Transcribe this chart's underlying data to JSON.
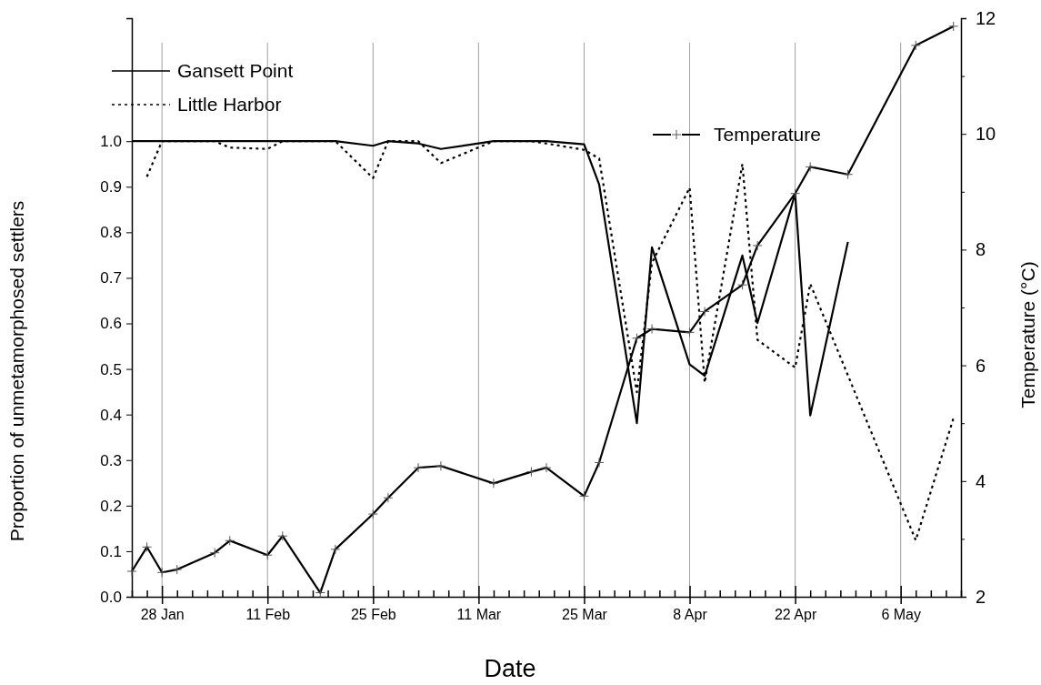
{
  "chart_data": {
    "type": "line",
    "xlabel": "Date",
    "ylabel": "Proportion of unmetamorphosed settlers",
    "y2label": "Temperature (°C)",
    "xlim": [
      "--01-24",
      "--05-14"
    ],
    "xticks": [
      {
        "value": "--01-24",
        "label": null
      },
      {
        "value": "--01-26",
        "label": null
      },
      {
        "value": "--01-28",
        "label": "28 Jan"
      },
      {
        "value": "--01-30",
        "label": null
      },
      {
        "value": "--02-01",
        "label": null
      },
      {
        "value": "--02-03",
        "label": null
      },
      {
        "value": "--02-05",
        "label": null
      },
      {
        "value": "--02-07",
        "label": null
      },
      {
        "value": "--02-09",
        "label": null
      },
      {
        "value": "--02-11",
        "label": "11 Feb"
      },
      {
        "value": "--02-13",
        "label": null
      },
      {
        "value": "--02-15",
        "label": null
      },
      {
        "value": "--02-17",
        "label": null
      },
      {
        "value": "--02-19",
        "label": null
      },
      {
        "value": "--02-21",
        "label": null
      },
      {
        "value": "--02-23",
        "label": null
      },
      {
        "value": "--02-25",
        "label": "25 Feb"
      },
      {
        "value": "--02-27",
        "label": null
      },
      {
        "value": "--03-01",
        "label": null
      },
      {
        "value": "--03-03",
        "label": null
      },
      {
        "value": "--03-05",
        "label": null
      },
      {
        "value": "--03-07",
        "label": null
      },
      {
        "value": "--03-09",
        "label": null
      },
      {
        "value": "--03-11",
        "label": "11 Mar"
      },
      {
        "value": "--03-13",
        "label": null
      },
      {
        "value": "--03-15",
        "label": null
      },
      {
        "value": "--03-17",
        "label": null
      },
      {
        "value": "--03-19",
        "label": null
      },
      {
        "value": "--03-21",
        "label": null
      },
      {
        "value": "--03-23",
        "label": null
      },
      {
        "value": "--03-25",
        "label": "25 Mar"
      },
      {
        "value": "--03-27",
        "label": null
      },
      {
        "value": "--03-29",
        "label": null
      },
      {
        "value": "--03-31",
        "label": null
      },
      {
        "value": "--04-02",
        "label": null
      },
      {
        "value": "--04-04",
        "label": null
      },
      {
        "value": "--04-06",
        "label": null
      },
      {
        "value": "--04-08",
        "label": "8 Apr"
      },
      {
        "value": "--04-10",
        "label": null
      },
      {
        "value": "--04-12",
        "label": null
      },
      {
        "value": "--04-14",
        "label": null
      },
      {
        "value": "--04-16",
        "label": null
      },
      {
        "value": "--04-18",
        "label": null
      },
      {
        "value": "--04-20",
        "label": null
      },
      {
        "value": "--04-22",
        "label": "22 Apr"
      },
      {
        "value": "--04-24",
        "label": null
      },
      {
        "value": "--04-26",
        "label": null
      },
      {
        "value": "--04-28",
        "label": null
      },
      {
        "value": "--04-30",
        "label": null
      },
      {
        "value": "--05-02",
        "label": null
      },
      {
        "value": "--05-04",
        "label": null
      },
      {
        "value": "--05-06",
        "label": "6 May"
      },
      {
        "value": "--05-08",
        "label": null
      },
      {
        "value": "--05-10",
        "label": null
      },
      {
        "value": "--05-12",
        "label": null
      },
      {
        "value": "--05-14",
        "label": null
      }
    ],
    "ylim": [
      0,
      1.27
    ],
    "yticks": [
      {
        "value": 0,
        "label": "0.0"
      },
      {
        "value": 0.1,
        "label": "0.1"
      },
      {
        "value": 0.2,
        "label": "0.2"
      },
      {
        "value": 0.3,
        "label": "0.3"
      },
      {
        "value": 0.4,
        "label": "0.4"
      },
      {
        "value": 0.5,
        "label": "0.5"
      },
      {
        "value": 0.6,
        "label": "0.6"
      },
      {
        "value": 0.7,
        "label": "0.7"
      },
      {
        "value": 0.8,
        "label": "0.8"
      },
      {
        "value": 0.9,
        "label": "0.9"
      },
      {
        "value": 1,
        "label": "1.0"
      }
    ],
    "y2lim": [
      2,
      12
    ],
    "y2ticks": [
      2,
      {
        "value": 3,
        "label": null
      },
      4,
      {
        "value": 5,
        "label": null
      },
      6,
      {
        "value": 7,
        "label": null
      },
      8,
      {
        "value": 9,
        "label": null
      },
      10,
      {
        "value": 11,
        "label": null
      },
      12
    ],
    "grid": "x",
    "legend": "top",
    "series": [
      {
        "name": "Gansett Point",
        "color": "#000000",
        "line_style": "solid",
        "marker": "none",
        "x": [
          "--01-24",
          "--01-26",
          "--01-28",
          "--01-30",
          "--02-04",
          "--02-06",
          "--02-11",
          "--02-13",
          "--02-18",
          "--02-20",
          "--02-25",
          "--02-27",
          "--03-03",
          "--03-06",
          "--03-13",
          "--03-18",
          "--03-20",
          "--03-25",
          "--03-27",
          "--04-01",
          "--04-03",
          "--04-08",
          "--04-10",
          "--04-15",
          "--04-17",
          "--04-22",
          "--04-24",
          "--04-29"
        ],
        "values": [
          1.0,
          1.0,
          1.0,
          1.0,
          1.0,
          1.0,
          1.0,
          1.0,
          1.0,
          1.0,
          0.99,
          1.0,
          0.995,
          0.983,
          1.0,
          1.0,
          1.0,
          0.993,
          0.905,
          0.381,
          0.767,
          0.51,
          0.485,
          0.749,
          0.601,
          0.885,
          0.398,
          0.779
        ]
      },
      {
        "name": "Little Harbor",
        "color": "#000000",
        "line_style": "dotted",
        "marker": "none",
        "x": [
          "--01-26",
          "--01-28",
          "--01-30",
          "--02-04",
          "--02-06",
          "--02-11",
          "--02-13",
          "--02-18",
          "--02-20",
          "--02-25",
          "--02-27",
          "--03-03",
          "--03-06",
          "--03-13",
          "--03-18",
          "--03-20",
          "--03-25",
          "--03-27",
          "--04-01",
          "--04-03",
          "--04-08",
          "--04-10",
          "--04-15",
          "--04-17",
          "--04-22",
          "--04-24",
          "--05-08",
          "--05-13"
        ],
        "values": [
          0.922,
          1.0,
          1.0,
          1.0,
          0.986,
          0.983,
          1.0,
          1.0,
          1.0,
          0.919,
          1.0,
          1.0,
          0.952,
          1.0,
          1.0,
          0.995,
          0.981,
          0.962,
          0.449,
          0.733,
          0.898,
          0.47,
          0.95,
          0.564,
          0.503,
          0.687,
          0.124,
          0.392
        ]
      },
      {
        "name": "Temperature",
        "color": "#000000",
        "line_style": "solid",
        "marker": "cross",
        "axis": "y2",
        "x": [
          "--01-24",
          "--01-26",
          "--01-28",
          "--01-30",
          "--02-04",
          "--02-06",
          "--02-11",
          "--02-13",
          "--02-18",
          "--02-20",
          "--02-25",
          "--02-27",
          "--03-03",
          "--03-06",
          "--03-13",
          "--03-18",
          "--03-20",
          "--03-25",
          "--03-27",
          "--04-01",
          "--04-03",
          "--04-08",
          "--04-10",
          "--04-15",
          "--04-17",
          "--04-22",
          "--04-24",
          "--04-29",
          "--05-08",
          "--05-13"
        ],
        "values": [
          2.44,
          2.86,
          2.42,
          2.47,
          2.76,
          2.97,
          2.72,
          3.05,
          2.07,
          2.82,
          3.43,
          3.71,
          4.23,
          4.26,
          3.96,
          4.16,
          4.23,
          3.74,
          4.32,
          6.47,
          6.63,
          6.57,
          6.93,
          7.39,
          8.07,
          8.97,
          9.43,
          9.3,
          11.53,
          11.86
        ]
      }
    ]
  }
}
